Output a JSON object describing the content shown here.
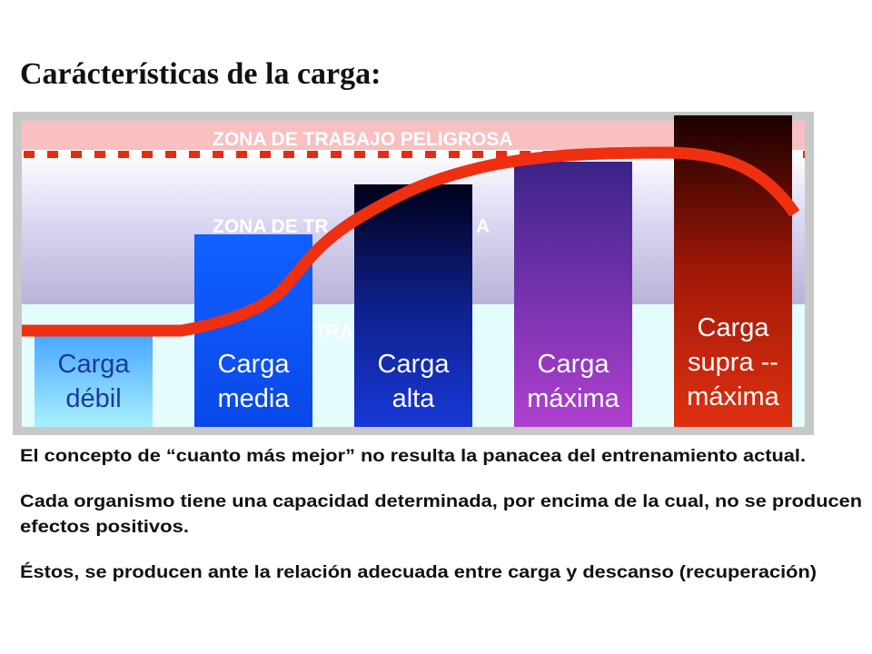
{
  "title": "Carácterísticas de la carga:",
  "zones": {
    "danger": "ZONA DE TRABAJO PELIGROSA",
    "middle_start": "ZONA DE TR",
    "middle_end": "A",
    "low": "TRA"
  },
  "bars": [
    {
      "line1": "Carga",
      "line2": "débil"
    },
    {
      "line1": "Carga",
      "line2": "media"
    },
    {
      "line1": "Carga",
      "line2": "alta"
    },
    {
      "line1": "Carga",
      "line2": "máxima"
    },
    {
      "line1": "Carga",
      "line2": "supra --",
      "line3": "máxima"
    }
  ],
  "paragraphs": [
    [
      "El concepto de “cuanto más mejor” no resulta la panacea del entrenamiento actual."
    ],
    [
      "Cada organismo tiene una capacidad determinada, por encima de la cual, no se producen",
      "efectos positivos."
    ],
    [
      "Éstos, se producen ante la relación adecuada entre carga y descanso (recuperación)"
    ]
  ]
}
